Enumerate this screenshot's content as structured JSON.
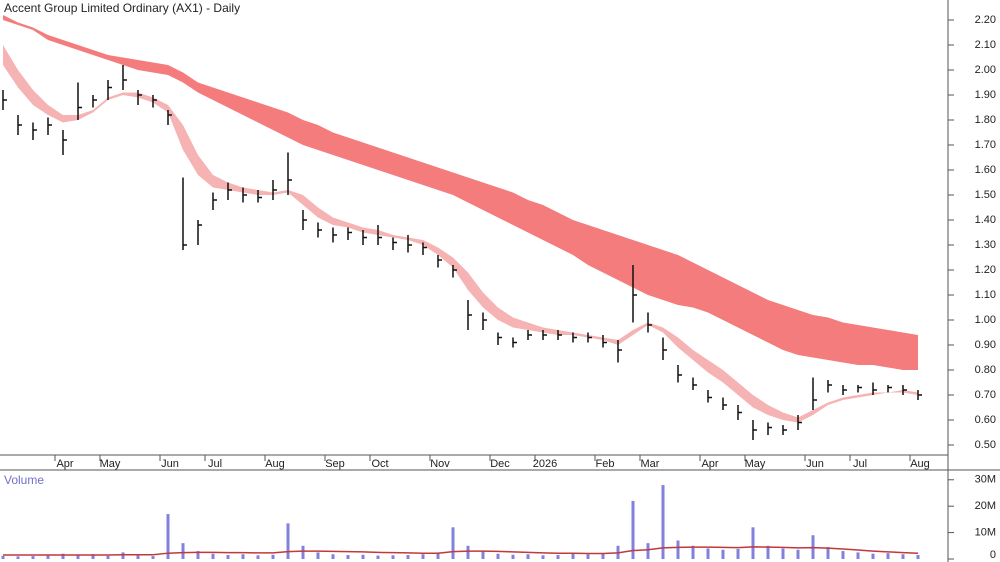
{
  "chart_data": [
    {
      "type": "ohlc",
      "title": "Accent Group Limited Ordinary (AX1) - Daily",
      "categories": [
        null,
        null,
        null,
        null,
        "Apr",
        null,
        null,
        "May",
        null,
        null,
        null,
        "Jun",
        null,
        null,
        "Jul",
        null,
        null,
        null,
        "Aug",
        null,
        null,
        null,
        "Sep",
        null,
        null,
        "Oct",
        null,
        null,
        null,
        "Nov",
        null,
        null,
        null,
        "Dec",
        null,
        null,
        "2026",
        null,
        null,
        null,
        "Feb",
        null,
        null,
        "Mar",
        null,
        null,
        null,
        "Apr",
        null,
        null,
        "May",
        null,
        null,
        null,
        "Jun",
        null,
        null,
        "Jul",
        null,
        null,
        null,
        "Aug"
      ],
      "high": [
        1.92,
        1.82,
        1.79,
        1.81,
        1.76,
        1.95,
        1.9,
        1.96,
        2.02,
        1.92,
        1.9,
        1.84,
        1.57,
        1.4,
        1.51,
        1.55,
        1.53,
        1.52,
        1.56,
        1.67,
        1.44,
        1.39,
        1.37,
        1.37,
        1.36,
        1.38,
        1.33,
        1.34,
        1.31,
        1.26,
        1.22,
        1.08,
        1.03,
        0.95,
        0.93,
        0.96,
        0.96,
        0.96,
        0.95,
        0.95,
        0.94,
        0.92,
        1.22,
        1.03,
        0.93,
        0.82,
        0.77,
        0.72,
        0.69,
        0.66,
        0.6,
        0.59,
        0.58,
        0.62,
        0.77,
        0.76,
        0.74,
        0.74,
        0.75,
        0.74,
        0.74,
        0.72
      ],
      "low": [
        1.84,
        1.74,
        1.72,
        1.74,
        1.66,
        1.8,
        1.85,
        1.88,
        1.92,
        1.86,
        1.85,
        1.78,
        1.28,
        1.3,
        1.44,
        1.48,
        1.47,
        1.47,
        1.48,
        1.5,
        1.36,
        1.33,
        1.31,
        1.32,
        1.3,
        1.3,
        1.28,
        1.27,
        1.26,
        1.21,
        1.17,
        0.96,
        0.96,
        0.9,
        0.89,
        0.92,
        0.92,
        0.92,
        0.91,
        0.91,
        0.89,
        0.83,
        0.99,
        0.95,
        0.84,
        0.75,
        0.72,
        0.67,
        0.64,
        0.6,
        0.52,
        0.54,
        0.54,
        0.56,
        0.64,
        0.71,
        0.7,
        0.71,
        0.7,
        0.71,
        0.7,
        0.68
      ],
      "close": [
        1.88,
        1.78,
        1.76,
        1.78,
        1.72,
        1.85,
        1.88,
        1.93,
        1.96,
        1.9,
        1.88,
        1.82,
        1.3,
        1.38,
        1.48,
        1.52,
        1.5,
        1.49,
        1.52,
        1.56,
        1.4,
        1.36,
        1.34,
        1.35,
        1.33,
        1.33,
        1.31,
        1.3,
        1.29,
        1.24,
        1.2,
        1.02,
        1.0,
        0.93,
        0.91,
        0.94,
        0.94,
        0.94,
        0.93,
        0.93,
        0.91,
        0.88,
        1.1,
        0.98,
        0.88,
        0.78,
        0.74,
        0.69,
        0.66,
        0.63,
        0.56,
        0.57,
        0.56,
        0.59,
        0.68,
        0.74,
        0.72,
        0.73,
        0.72,
        0.73,
        0.72,
        0.7
      ],
      "bar_color": "#111111",
      "bands": [
        {
          "color": "#f47c7c",
          "upper": [
            2.22,
            2.19,
            2.17,
            2.14,
            2.12,
            2.1,
            2.08,
            2.06,
            2.05,
            2.04,
            2.03,
            2.02,
            1.99,
            1.95,
            1.93,
            1.91,
            1.89,
            1.87,
            1.85,
            1.83,
            1.8,
            1.78,
            1.75,
            1.73,
            1.71,
            1.69,
            1.67,
            1.65,
            1.63,
            1.61,
            1.59,
            1.57,
            1.55,
            1.53,
            1.51,
            1.48,
            1.46,
            1.43,
            1.4,
            1.38,
            1.36,
            1.34,
            1.32,
            1.3,
            1.28,
            1.26,
            1.23,
            1.2,
            1.17,
            1.14,
            1.11,
            1.08,
            1.06,
            1.04,
            1.02,
            1.01,
            0.99,
            0.98,
            0.97,
            0.96,
            0.95,
            0.94
          ],
          "lower": [
            2.2,
            2.18,
            2.16,
            2.12,
            2.1,
            2.08,
            2.06,
            2.04,
            2.02,
            2.0,
            1.99,
            1.98,
            1.95,
            1.91,
            1.88,
            1.85,
            1.82,
            1.79,
            1.76,
            1.73,
            1.7,
            1.68,
            1.66,
            1.64,
            1.62,
            1.6,
            1.58,
            1.56,
            1.54,
            1.52,
            1.5,
            1.47,
            1.44,
            1.41,
            1.38,
            1.35,
            1.32,
            1.29,
            1.26,
            1.22,
            1.19,
            1.16,
            1.13,
            1.1,
            1.08,
            1.06,
            1.05,
            1.03,
            1.0,
            0.97,
            0.94,
            0.91,
            0.88,
            0.86,
            0.85,
            0.84,
            0.83,
            0.82,
            0.82,
            0.81,
            0.8,
            0.8
          ]
        },
        {
          "color": "#f6b3b3",
          "upper": [
            2.1,
            2.0,
            1.92,
            1.86,
            1.82,
            1.82,
            1.84,
            1.89,
            1.91,
            1.91,
            1.89,
            1.86,
            1.78,
            1.66,
            1.58,
            1.55,
            1.53,
            1.52,
            1.51,
            1.52,
            1.5,
            1.45,
            1.41,
            1.39,
            1.37,
            1.36,
            1.34,
            1.33,
            1.32,
            1.29,
            1.25,
            1.19,
            1.11,
            1.05,
            1.01,
            0.99,
            0.97,
            0.96,
            0.95,
            0.94,
            0.93,
            0.92,
            0.96,
            0.99,
            0.97,
            0.93,
            0.88,
            0.84,
            0.8,
            0.75,
            0.7,
            0.66,
            0.63,
            0.61,
            0.64,
            0.67,
            0.69,
            0.7,
            0.71,
            0.71,
            0.72,
            0.71
          ],
          "lower": [
            2.02,
            1.93,
            1.86,
            1.82,
            1.79,
            1.8,
            1.83,
            1.88,
            1.9,
            1.89,
            1.87,
            1.83,
            1.68,
            1.58,
            1.53,
            1.52,
            1.51,
            1.5,
            1.5,
            1.51,
            1.46,
            1.41,
            1.38,
            1.37,
            1.35,
            1.34,
            1.33,
            1.32,
            1.3,
            1.26,
            1.21,
            1.12,
            1.05,
            1.0,
            0.97,
            0.96,
            0.95,
            0.94,
            0.94,
            0.93,
            0.92,
            0.9,
            0.94,
            0.98,
            0.95,
            0.89,
            0.84,
            0.79,
            0.75,
            0.7,
            0.65,
            0.62,
            0.6,
            0.59,
            0.62,
            0.66,
            0.68,
            0.69,
            0.7,
            0.71,
            0.71,
            0.7
          ]
        }
      ],
      "ylim": [
        0.46,
        2.28
      ],
      "yticks": [
        {
          "value": 0.5,
          "label": "0.50"
        },
        {
          "value": 0.6,
          "label": "0.60"
        },
        {
          "value": 0.7,
          "label": "0.70"
        },
        {
          "value": 0.8,
          "label": "0.80"
        },
        {
          "value": 0.9,
          "label": "0.90"
        },
        {
          "value": 1.0,
          "label": "1.00"
        },
        {
          "value": 1.1,
          "label": "1.10"
        },
        {
          "value": 1.2,
          "label": "1.20"
        },
        {
          "value": 1.3,
          "label": "1.30"
        },
        {
          "value": 1.4,
          "label": "1.40"
        },
        {
          "value": 1.5,
          "label": "1.50"
        },
        {
          "value": 1.6,
          "label": "1.60"
        },
        {
          "value": 1.7,
          "label": "1.70"
        },
        {
          "value": 1.8,
          "label": "1.80"
        },
        {
          "value": 1.9,
          "label": "1.90"
        },
        {
          "value": 2.0,
          "label": "2.00"
        },
        {
          "value": 2.1,
          "label": "2.10"
        },
        {
          "value": 2.2,
          "label": "2.20"
        }
      ]
    },
    {
      "type": "bar",
      "title": "Volume",
      "color": "#8282dc",
      "values": [
        1200000,
        1000000,
        1100000,
        1300000,
        2000000,
        1500000,
        1800000,
        1200000,
        2500000,
        1300000,
        1100000,
        17000000,
        6000000,
        3000000,
        2000000,
        1500000,
        1800000,
        1400000,
        1600000,
        13500000,
        5000000,
        2500000,
        1800000,
        1500000,
        1600000,
        1300000,
        1400000,
        1500000,
        1800000,
        2500000,
        12000000,
        5000000,
        3000000,
        2000000,
        1600000,
        1800000,
        1400000,
        1500000,
        2000000,
        1800000,
        2200000,
        5000000,
        22000000,
        6000000,
        28000000,
        7000000,
        5000000,
        4000000,
        3500000,
        3800000,
        12000000,
        5000000,
        4000000,
        3500000,
        9000000,
        4500000,
        3000000,
        2500000,
        2000000,
        2200000,
        1800000,
        1500000
      ],
      "average": {
        "color": "#c0393b",
        "values": [
          1500000,
          1500000,
          1500000,
          1500000,
          1500000,
          1500000,
          1500000,
          1500000,
          1600000,
          1600000,
          1600000,
          2200000,
          2400000,
          2500000,
          2500000,
          2400000,
          2400000,
          2300000,
          2300000,
          2800000,
          3000000,
          3000000,
          2900000,
          2800000,
          2700000,
          2500000,
          2400000,
          2300000,
          2200000,
          2200000,
          2800000,
          3000000,
          3000000,
          2900000,
          2700000,
          2500000,
          2300000,
          2200000,
          2200000,
          2100000,
          2100000,
          2300000,
          3200000,
          3500000,
          4200000,
          4400000,
          4500000,
          4500000,
          4400000,
          4300000,
          4600000,
          4500000,
          4400000,
          4200000,
          4300000,
          4100000,
          3800000,
          3400000,
          3000000,
          2700000,
          2400000,
          2200000
        ]
      },
      "ylim": [
        0,
        33700000
      ],
      "yticks": [
        0,
        {
          "value": 10000000,
          "label": "10M"
        },
        {
          "value": 20000000,
          "label": "20M"
        },
        {
          "value": 30000000,
          "label": "30M"
        }
      ]
    }
  ]
}
